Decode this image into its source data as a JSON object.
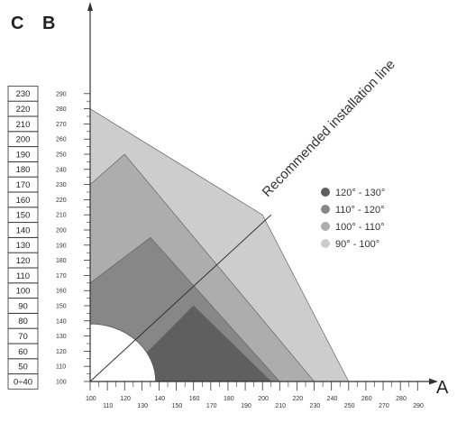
{
  "axes": {
    "c_title": "C",
    "b_title": "B",
    "a_title": "A",
    "a_ticks": [
      "100",
      "110",
      "120",
      "130",
      "140",
      "150",
      "160",
      "170",
      "180",
      "190",
      "200",
      "210",
      "220",
      "230",
      "240",
      "250",
      "260",
      "270",
      "280",
      "290"
    ],
    "b_ticks": [
      "100",
      "110",
      "120",
      "130",
      "140",
      "150",
      "160",
      "170",
      "180",
      "190",
      "200",
      "210",
      "220",
      "230",
      "240",
      "250",
      "260",
      "270",
      "280",
      "290"
    ],
    "c_values": [
      "0÷40",
      "50",
      "60",
      "70",
      "80",
      "90",
      "100",
      "110",
      "120",
      "130",
      "140",
      "150",
      "160",
      "170",
      "180",
      "190",
      "200",
      "210",
      "220",
      "230"
    ]
  },
  "installation_line_label": "Recommended installation line",
  "zones": [
    {
      "label": "120° - 130°",
      "color": "#5f5f5f"
    },
    {
      "label": "110° - 120°",
      "color": "#878787"
    },
    {
      "label": "100° - 110°",
      "color": "#adadad"
    },
    {
      "label": "90° - 100°",
      "color": "#cdcdcd"
    }
  ],
  "chart_data": {
    "type": "area",
    "x_axis_title": "A",
    "y_axis_title": "B",
    "secondary_y_axis_title": "C",
    "xlim": [
      100,
      290
    ],
    "ylim": [
      100,
      290
    ],
    "regions": [
      {
        "name": "90° - 100°",
        "points": [
          [
            100,
            100
          ],
          [
            100,
            280
          ],
          [
            200,
            210
          ],
          [
            250,
            100
          ]
        ]
      },
      {
        "name": "100° - 110°",
        "points": [
          [
            100,
            100
          ],
          [
            100,
            230
          ],
          [
            120,
            250
          ],
          [
            230,
            100
          ]
        ]
      },
      {
        "name": "110° - 120°",
        "points": [
          [
            100,
            100
          ],
          [
            100,
            165
          ],
          [
            135,
            195
          ],
          [
            210,
            100
          ]
        ]
      },
      {
        "name": "120° - 130°",
        "points": [
          [
            135,
            100
          ],
          [
            132,
            118
          ],
          [
            160,
            150
          ],
          [
            205,
            100
          ]
        ]
      }
    ],
    "excluded_region": {
      "center": [
        100,
        100
      ],
      "radius": 38
    },
    "reference_line": {
      "label": "Recommended installation line",
      "from": [
        100,
        100
      ],
      "to": [
        205,
        210
      ]
    }
  }
}
